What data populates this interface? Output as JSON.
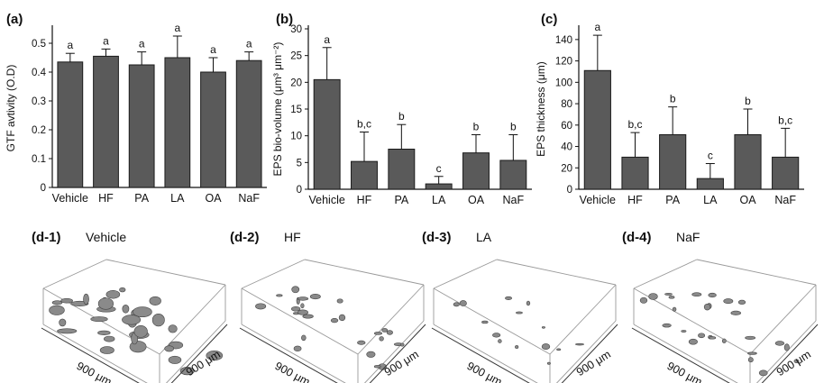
{
  "chart_data": [
    {
      "type": "bar",
      "panel_label": "(a)",
      "ylabel": "GTF avtivity (O.D)",
      "xlabel": "",
      "ylim": [
        0,
        0.55
      ],
      "yticks": [
        "0",
        "0.1",
        "0.2",
        "0.3",
        "0.4",
        "0.5"
      ],
      "categories": [
        "Vehicle",
        "HF",
        "PA",
        "LA",
        "OA",
        "NaF"
      ],
      "values": [
        0.435,
        0.455,
        0.425,
        0.45,
        0.4,
        0.44
      ],
      "errors": [
        0.03,
        0.025,
        0.045,
        0.075,
        0.05,
        0.03
      ],
      "significance": [
        "a",
        "a",
        "a",
        "a",
        "a",
        "a"
      ]
    },
    {
      "type": "bar",
      "panel_label": "(b)",
      "ylabel": "EPS bio-volume (μm³ μm⁻²)",
      "xlabel": "",
      "ylim": [
        0,
        30
      ],
      "yticks": [
        "0",
        "5",
        "10",
        "15",
        "20",
        "25",
        "30"
      ],
      "categories": [
        "Vehicle",
        "HF",
        "PA",
        "LA",
        "OA",
        "NaF"
      ],
      "values": [
        20.5,
        5.2,
        7.5,
        1.0,
        6.8,
        5.4
      ],
      "errors": [
        6.0,
        5.5,
        4.6,
        1.4,
        3.4,
        4.8
      ],
      "significance": [
        "a",
        "b,c",
        "b",
        "c",
        "b",
        "b"
      ]
    },
    {
      "type": "bar",
      "panel_label": "(c)",
      "ylabel": "EPS thickness (μm)",
      "xlabel": "",
      "ylim": [
        0,
        150
      ],
      "yticks": [
        "0",
        "20",
        "40",
        "60",
        "80",
        "100",
        "120",
        "140"
      ],
      "categories": [
        "Vehicle",
        "HF",
        "PA",
        "LA",
        "OA",
        "NaF"
      ],
      "values": [
        111,
        30,
        51,
        10,
        51,
        30
      ],
      "errors": [
        33,
        23,
        26,
        14,
        24,
        27
      ],
      "significance": [
        "a",
        "b,c",
        "b",
        "c",
        "b",
        "b,c"
      ]
    }
  ],
  "images": [
    {
      "label": "(d-1)",
      "title": "Vehicle",
      "dim_x": "900 μm",
      "dim_y": "900 μm",
      "density": "high"
    },
    {
      "label": "(d-2)",
      "title": "HF",
      "dim_x": "900 μm",
      "dim_y": "900 μm",
      "density": "medium"
    },
    {
      "label": "(d-3)",
      "title": "LA",
      "dim_x": "900 μm",
      "dim_y": "900 μm",
      "density": "low"
    },
    {
      "label": "(d-4)",
      "title": "NaF",
      "dim_x": "900 μm",
      "dim_y": "900 μm",
      "density": "medium"
    }
  ],
  "colors": {
    "bar_fill": "#5a5a5a",
    "bar_stroke": "#1a1a1a",
    "axis": "#111111",
    "blob": "#8a8a8a"
  }
}
